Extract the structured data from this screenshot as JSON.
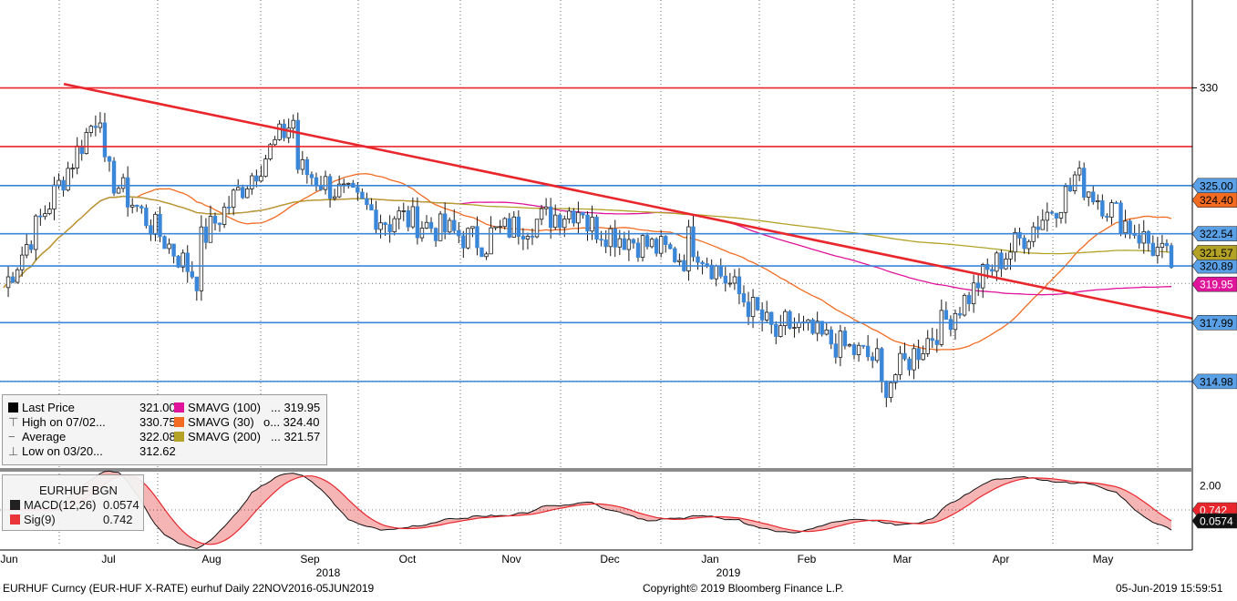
{
  "instrument": "EURHUF BGN",
  "chart_data": [
    {
      "type": "candlestick",
      "title": "",
      "y_range": [
        310.5,
        334.5
      ],
      "y_ticks": [
        {
          "value": 330,
          "label": "330"
        }
      ],
      "x_months": [
        {
          "label": "Jun",
          "year": ""
        },
        {
          "label": "Jul",
          "year": ""
        },
        {
          "label": "Aug",
          "year": ""
        },
        {
          "label": "Sep",
          "year": "2018"
        },
        {
          "label": "Oct",
          "year": ""
        },
        {
          "label": "Nov",
          "year": ""
        },
        {
          "label": "Dec",
          "year": ""
        },
        {
          "label": "Jan",
          "year": "2019"
        },
        {
          "label": "Feb",
          "year": ""
        },
        {
          "label": "Mar",
          "year": ""
        },
        {
          "label": "Apr",
          "year": ""
        },
        {
          "label": "May",
          "year": ""
        }
      ],
      "close_series_monthly": [
        {
          "month": "Jun",
          "start": 319.8,
          "end": 329.0
        },
        {
          "month": "Jul",
          "start": 326.0,
          "end": 320.2
        },
        {
          "month": "Aug",
          "start": 322.0,
          "end": 328.5
        },
        {
          "month": "Sep",
          "start": 326.0,
          "end": 323.0
        },
        {
          "month": "Oct",
          "start": 323.5,
          "end": 322.0
        },
        {
          "month": "Nov",
          "start": 322.5,
          "end": 324.0
        },
        {
          "month": "Dec",
          "start": 323.0,
          "end": 321.3
        },
        {
          "month": "Jan",
          "start": 322.5,
          "end": 317.0
        },
        {
          "month": "Feb",
          "start": 318.0,
          "end": 316.0
        },
        {
          "month": "Mar",
          "start": 314.5,
          "end": 319.8
        },
        {
          "month": "Apr",
          "start": 320.0,
          "end": 325.0
        },
        {
          "month": "May",
          "start": 325.5,
          "end": 321.0
        }
      ],
      "horizontal_levels": [
        {
          "value": 330.0,
          "color": "#e8262c",
          "label": "330"
        },
        {
          "value": 327.0,
          "color": "#e8262c",
          "label": ""
        },
        {
          "value": 325.0,
          "color": "#3a86d8",
          "label": "325.00"
        },
        {
          "value": 322.54,
          "color": "#3a86d8",
          "label": "322.54"
        },
        {
          "value": 320.89,
          "color": "#3a86d8",
          "label": "320.89"
        },
        {
          "value": 317.99,
          "color": "#3a86d8",
          "label": "317.99"
        },
        {
          "value": 314.98,
          "color": "#3a86d8",
          "label": "314.98"
        }
      ],
      "trendline": {
        "from": {
          "date": "2018-06-20",
          "value": 330.2
        },
        "to": {
          "date": "2019-06-05",
          "value": 318.2
        },
        "color": "#e8262c"
      },
      "series_tags": [
        {
          "label": "324.40",
          "value": 324.4,
          "color": "#f26b21"
        },
        {
          "label": "321.57",
          "value": 321.57,
          "color": "#b3a226"
        },
        {
          "label": "319.95",
          "value": 319.95,
          "color": "#e0149b"
        }
      ],
      "moving_averages": [
        {
          "name": "SMAVG (100)",
          "value": "319.95",
          "color": "#e0149b"
        },
        {
          "name": "SMAVG (30)",
          "value": "324.40",
          "color": "#f26b21"
        },
        {
          "name": "SMAVG (200)",
          "value": "321.57",
          "color": "#b3a226"
        }
      ]
    },
    {
      "type": "area",
      "title": "",
      "y_ticks": [
        {
          "value": 2.0,
          "label": "2.00"
        }
      ],
      "series": [
        {
          "name": "MACD(12,26)",
          "value": "0.0574",
          "color": "#111111"
        },
        {
          "name": "Sig(9)",
          "value": "0.742",
          "color": "#e8262c"
        }
      ],
      "series_tags": [
        {
          "label": "0.742",
          "color": "#e8262c"
        },
        {
          "label": "0.0574",
          "color": "#111111"
        }
      ]
    }
  ],
  "legend": {
    "rows": [
      {
        "label": "Last Price",
        "value": "321.00"
      },
      {
        "label": "High on 07/02...",
        "value": "330.75"
      },
      {
        "label": "Average",
        "value": "322.08"
      },
      {
        "label": "Low on 03/20...",
        "value": "312.62"
      }
    ],
    "ma_rows": [
      {
        "label": "SMAVG (100)",
        "value": "... 319.95"
      },
      {
        "label": "SMAVG (30)",
        "value": "o... 324.40"
      },
      {
        "label": "SMAVG (200)",
        "value": "... 321.57"
      }
    ]
  },
  "macd_legend": {
    "title": "EURHUF BGN",
    "rows": [
      {
        "label": "MACD(12,26)",
        "value": "0.0574"
      },
      {
        "label": "Sig(9)",
        "value": "0.742"
      }
    ]
  },
  "footer": {
    "left": "EURHUF Curncy (EUR-HUF X-RATE) eurhuf  Daily 22NOV2016-05JUN2019",
    "center": "Copyright© 2019 Bloomberg Finance L.P.",
    "right": "05-Jun-2019 15:59:51"
  },
  "colors": {
    "candle": "#3a86d8",
    "level_blue": "#3a86d8",
    "level_red": "#e8262c",
    "ma100": "#e0149b",
    "ma30": "#f26b21",
    "ma200": "#b3a226"
  }
}
